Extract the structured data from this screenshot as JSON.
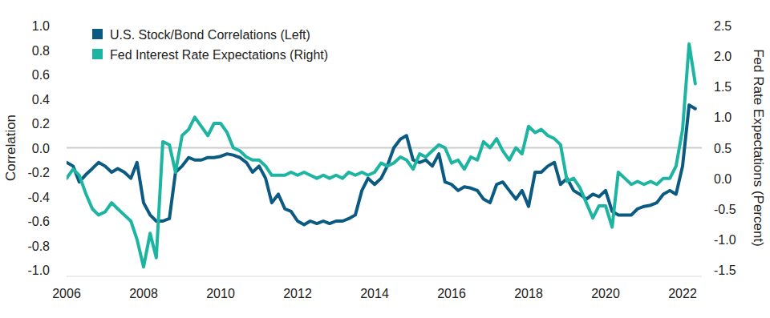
{
  "chart_data": {
    "type": "line",
    "x": [
      2006,
      2006.17,
      2006.33,
      2006.5,
      2006.67,
      2006.83,
      2007,
      2007.17,
      2007.33,
      2007.5,
      2007.67,
      2007.83,
      2008,
      2008.17,
      2008.33,
      2008.5,
      2008.67,
      2008.83,
      2009,
      2009.17,
      2009.33,
      2009.5,
      2009.67,
      2009.83,
      2010,
      2010.17,
      2010.33,
      2010.5,
      2010.67,
      2010.83,
      2011,
      2011.17,
      2011.33,
      2011.5,
      2011.67,
      2011.83,
      2012,
      2012.17,
      2012.33,
      2012.5,
      2012.67,
      2012.83,
      2013,
      2013.17,
      2013.33,
      2013.5,
      2013.67,
      2013.83,
      2014,
      2014.17,
      2014.33,
      2014.5,
      2014.67,
      2014.83,
      2015,
      2015.17,
      2015.33,
      2015.5,
      2015.67,
      2015.83,
      2016,
      2016.17,
      2016.33,
      2016.5,
      2016.67,
      2016.83,
      2017,
      2017.17,
      2017.33,
      2017.5,
      2017.67,
      2017.83,
      2018,
      2018.17,
      2018.33,
      2018.5,
      2018.67,
      2018.83,
      2019,
      2019.17,
      2019.33,
      2019.5,
      2019.67,
      2019.83,
      2020,
      2020.17,
      2020.33,
      2020.5,
      2020.67,
      2020.83,
      2021,
      2021.17,
      2021.33,
      2021.5,
      2021.67,
      2021.83,
      2022,
      2022.17,
      2022.33
    ],
    "series": [
      {
        "name": "U.S. Stock/Bond Correlations (Left)",
        "color": "#0b5a82",
        "axis": "y",
        "values": [
          -0.12,
          -0.15,
          -0.28,
          -0.22,
          -0.17,
          -0.12,
          -0.15,
          -0.2,
          -0.17,
          -0.2,
          -0.25,
          -0.12,
          -0.45,
          -0.55,
          -0.6,
          -0.6,
          -0.58,
          -0.2,
          -0.15,
          -0.08,
          -0.1,
          -0.1,
          -0.08,
          -0.08,
          -0.07,
          -0.05,
          -0.06,
          -0.08,
          -0.12,
          -0.2,
          -0.15,
          -0.25,
          -0.45,
          -0.38,
          -0.5,
          -0.52,
          -0.6,
          -0.63,
          -0.6,
          -0.62,
          -0.6,
          -0.62,
          -0.6,
          -0.6,
          -0.58,
          -0.55,
          -0.35,
          -0.25,
          -0.3,
          -0.25,
          -0.15,
          0,
          0.07,
          0.1,
          -0.1,
          -0.12,
          -0.1,
          -0.15,
          -0.05,
          -0.28,
          -0.3,
          -0.35,
          -0.32,
          -0.33,
          -0.35,
          -0.42,
          -0.45,
          -0.3,
          -0.28,
          -0.35,
          -0.42,
          -0.35,
          -0.48,
          -0.2,
          -0.2,
          -0.15,
          -0.12,
          -0.3,
          -0.25,
          -0.35,
          -0.38,
          -0.42,
          -0.38,
          -0.4,
          -0.35,
          -0.52,
          -0.55,
          -0.55,
          -0.55,
          -0.5,
          -0.48,
          -0.47,
          -0.45,
          -0.38,
          -0.35,
          -0.38,
          -0.15,
          0.35,
          0.32
        ]
      },
      {
        "name": "Fed Interest Rate Expectations (Right)",
        "color": "#1db5a1",
        "axis": "y2",
        "values": [
          0,
          0.15,
          0.05,
          -0.25,
          -0.5,
          -0.6,
          -0.55,
          -0.4,
          -0.5,
          -0.6,
          -0.7,
          -1.0,
          -1.45,
          -0.9,
          -1.3,
          0.6,
          0.55,
          0.1,
          0.7,
          0.8,
          1.0,
          0.85,
          0.7,
          0.9,
          0.9,
          0.75,
          0.5,
          0.45,
          0.35,
          0.3,
          0.3,
          0.2,
          0.05,
          0.05,
          0.05,
          0.1,
          0.05,
          0.1,
          0.05,
          0,
          0.05,
          0,
          0.05,
          0,
          0.1,
          0.05,
          0.1,
          0.05,
          0.1,
          0.25,
          0.2,
          0.25,
          0.35,
          0.3,
          0.15,
          0.4,
          0.35,
          0.45,
          0.55,
          0.5,
          0.25,
          0.3,
          0.15,
          0.35,
          0.3,
          0.6,
          0.5,
          0.65,
          0.45,
          0.3,
          0.5,
          0.4,
          0.85,
          0.75,
          0.8,
          0.7,
          0.65,
          0.55,
          -0.05,
          0,
          -0.15,
          -0.4,
          -0.65,
          -0.45,
          -0.45,
          -0.8,
          0.1,
          0,
          -0.1,
          -0.05,
          -0.1,
          -0.05,
          -0.1,
          0,
          0,
          0.2,
          0.8,
          2.2,
          1.55
        ]
      }
    ],
    "y_label": "Correlation",
    "y2_label": "Fed Rate Expectations (Percent)",
    "xlim": [
      2006,
      2022.5
    ],
    "xticks": [
      2006,
      2008,
      2010,
      2012,
      2014,
      2016,
      2018,
      2020,
      2022
    ],
    "ylim": [
      -1,
      1
    ],
    "yticks": [
      {
        "value": 1,
        "label": "1.0"
      },
      0.8,
      0.6,
      0.4,
      0.2,
      {
        "value": 0,
        "label": "0.0"
      },
      -0.2,
      -0.4,
      -0.6,
      -0.8,
      {
        "value": -1,
        "label": "-1.0"
      }
    ],
    "y2lim": [
      -1.5,
      2.5
    ],
    "y2ticks": [
      2.5,
      {
        "value": 2,
        "label": "2.0"
      },
      1.5,
      {
        "value": 1,
        "label": "1.0"
      },
      0.5,
      {
        "value": 0,
        "label": "0.0"
      },
      -0.5,
      {
        "value": -1,
        "label": "-1.0"
      },
      -1.5
    ],
    "legend": "upper left",
    "grid": false
  }
}
